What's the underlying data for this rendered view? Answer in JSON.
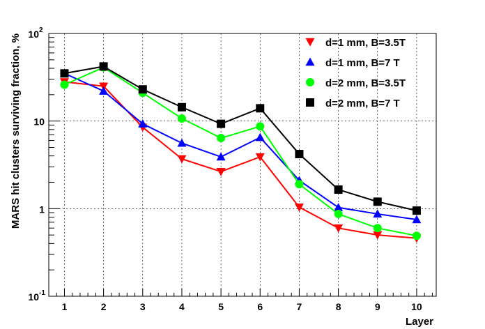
{
  "chart_data": {
    "type": "line",
    "title": "",
    "xlabel": "Layer",
    "ylabel": "MARS hit clusters surviving fraction, %",
    "y_scale": "log",
    "xlim": [
      0.6,
      10.5
    ],
    "ylim": [
      0.1,
      100
    ],
    "grid": true,
    "legend_position": "top-right",
    "x": [
      1,
      2,
      3,
      4,
      5,
      6,
      7,
      8,
      9,
      10
    ],
    "x_tick_labels": [
      "1",
      "2",
      "3",
      "4",
      "5",
      "6",
      "7",
      "8",
      "9",
      "10"
    ],
    "y_tick_labels": [
      {
        "value": 0.1,
        "base": "10",
        "exp": "-1"
      },
      {
        "value": 1,
        "base": "1",
        "exp": ""
      },
      {
        "value": 10,
        "base": "10",
        "exp": ""
      },
      {
        "value": 100,
        "base": "10",
        "exp": "2"
      }
    ],
    "series": [
      {
        "name": "d=1 mm, B=3.5T",
        "color": "#ff0000",
        "marker": "triangle-down",
        "values": [
          28,
          25,
          8.5,
          3.7,
          2.65,
          3.9,
          1.04,
          0.6,
          0.5,
          0.46
        ]
      },
      {
        "name": "d=1 mm, B=7 T",
        "color": "#0000ff",
        "marker": "triangle-up",
        "values": [
          35,
          22,
          9.3,
          5.6,
          3.9,
          6.5,
          2.1,
          1.03,
          0.87,
          0.75
        ]
      },
      {
        "name": "d=2 mm, B=3.5T",
        "color": "#00ff00",
        "marker": "circle",
        "values": [
          26,
          41,
          21,
          10.7,
          6.4,
          8.7,
          1.9,
          0.87,
          0.6,
          0.49
        ]
      },
      {
        "name": "d=2 mm, B=7 T",
        "color": "#000000",
        "marker": "square",
        "values": [
          35,
          42,
          23,
          14.4,
          9.3,
          14,
          4.2,
          1.65,
          1.2,
          0.95
        ]
      }
    ]
  }
}
